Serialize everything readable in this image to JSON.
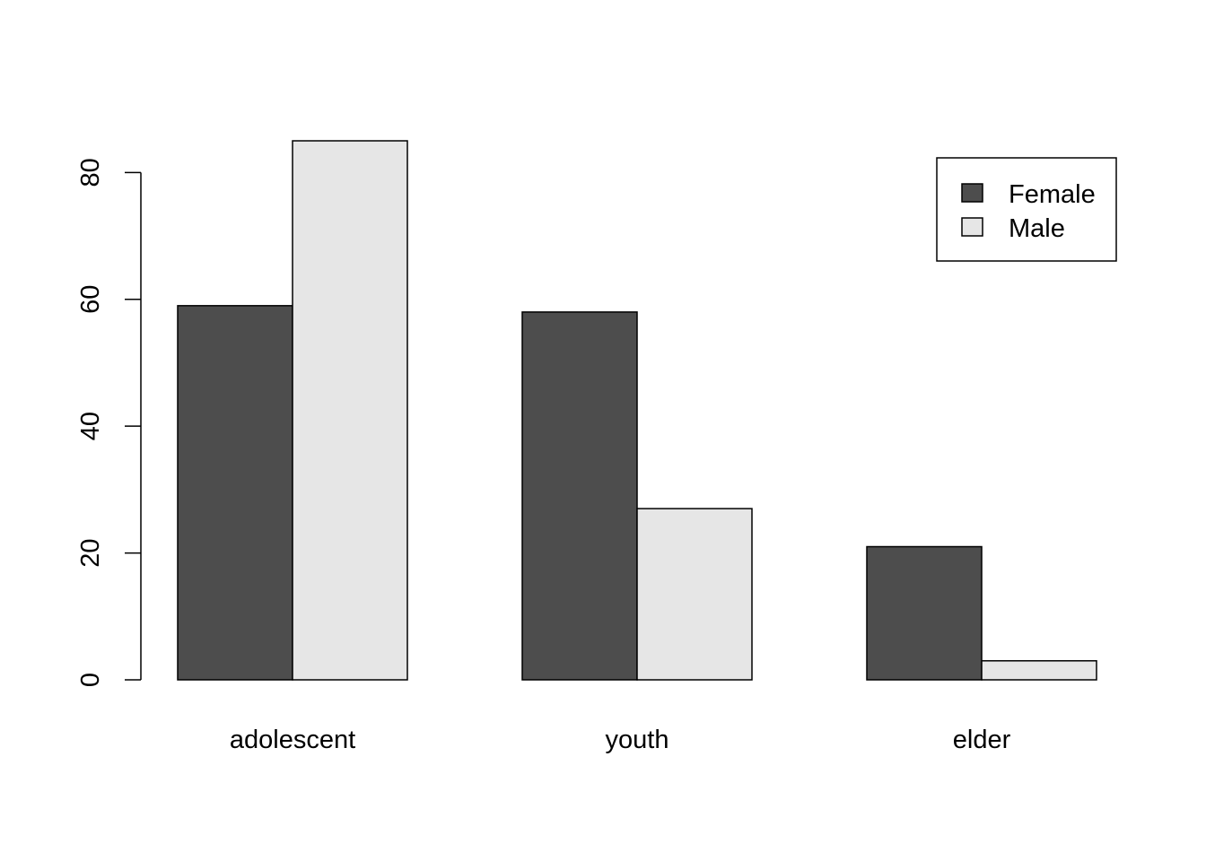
{
  "chart_data": {
    "type": "bar",
    "title": "",
    "xlabel": "",
    "ylabel": "",
    "categories": [
      "adolescent",
      "youth",
      "elder"
    ],
    "series": [
      {
        "name": "Female",
        "values": [
          59,
          58,
          21
        ],
        "color": "#4d4d4d"
      },
      {
        "name": "Male",
        "values": [
          85,
          27,
          3
        ],
        "color": "#e6e6e6"
      }
    ],
    "y_ticks": [
      0,
      20,
      40,
      60,
      80
    ],
    "ylim": [
      0,
      85
    ],
    "grid": false,
    "legend_position": "top-right",
    "bar_outline_color": "#000000"
  }
}
